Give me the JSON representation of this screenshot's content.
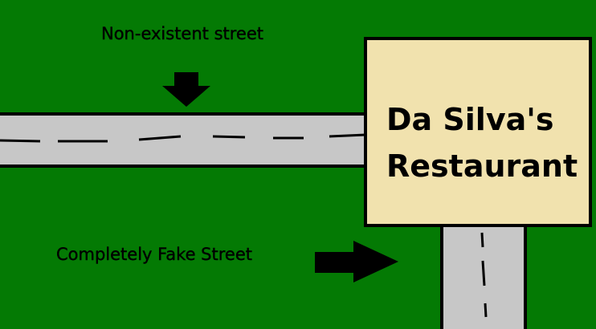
{
  "labels": {
    "top_street": "Non-existent street",
    "bottom_street": "Completely Fake Street"
  },
  "restaurant": {
    "line1": "Da Silva's",
    "line2": "Restaurant"
  },
  "colors": {
    "grass": "#047a04",
    "road": "#c7c7c7",
    "outline": "#000000",
    "building": "#f1e2ae"
  },
  "icons": [
    "down-arrow-icon",
    "right-arrow-icon"
  ]
}
